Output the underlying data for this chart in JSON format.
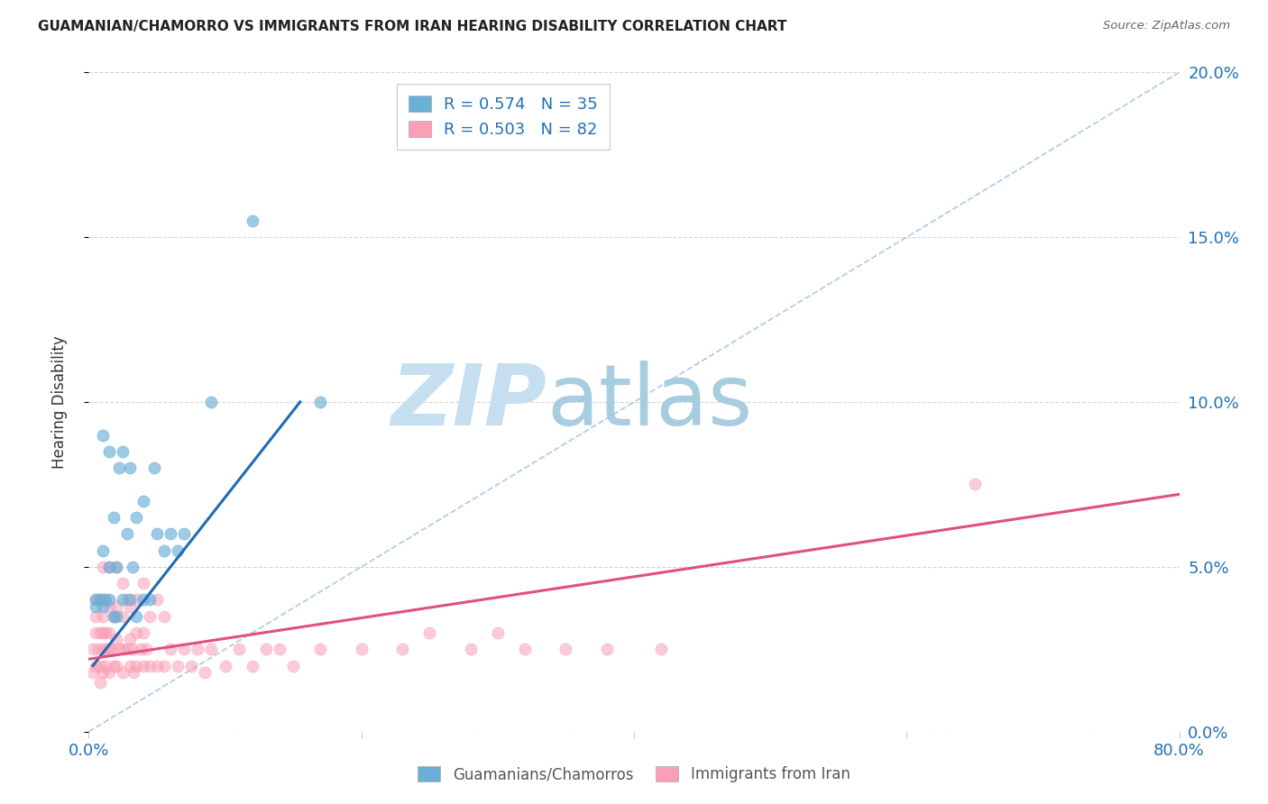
{
  "title": "GUAMANIAN/CHAMORRO VS IMMIGRANTS FROM IRAN HEARING DISABILITY CORRELATION CHART",
  "source": "Source: ZipAtlas.com",
  "ylabel": "Hearing Disability",
  "right_ytick_labels": [
    "0.0%",
    "5.0%",
    "10.0%",
    "15.0%",
    "20.0%"
  ],
  "right_ytick_values": [
    0.0,
    0.05,
    0.1,
    0.15,
    0.2
  ],
  "xtick_labels": [
    "0.0%",
    "",
    "",
    "",
    "80.0%"
  ],
  "xtick_values": [
    0.0,
    0.2,
    0.4,
    0.6,
    0.8
  ],
  "xlim": [
    0.0,
    0.8
  ],
  "ylim": [
    0.0,
    0.2
  ],
  "legend_entry1": "R = 0.574   N = 35",
  "legend_entry2": "R = 0.503   N = 82",
  "color_blue": "#6baed6",
  "color_pink": "#fa9fb5",
  "color_blue_line": "#1f6bb5",
  "color_pink_line": "#e05080",
  "color_legend_text": "#2171b5",
  "watermark_zip_color": "#c5dff0",
  "watermark_atlas_color": "#a8cce0",
  "background_color": "#ffffff",
  "grid_color": "#d0d0d0",
  "dash_color": "#a8c8e8",
  "blue_dots_x": [
    0.005,
    0.008,
    0.01,
    0.01,
    0.01,
    0.012,
    0.015,
    0.015,
    0.015,
    0.018,
    0.018,
    0.02,
    0.02,
    0.022,
    0.025,
    0.025,
    0.028,
    0.03,
    0.03,
    0.032,
    0.035,
    0.035,
    0.04,
    0.04,
    0.045,
    0.048,
    0.05,
    0.055,
    0.06,
    0.065,
    0.07,
    0.09,
    0.12,
    0.17,
    0.005
  ],
  "blue_dots_y": [
    0.04,
    0.04,
    0.038,
    0.055,
    0.09,
    0.04,
    0.04,
    0.05,
    0.085,
    0.035,
    0.065,
    0.035,
    0.05,
    0.08,
    0.04,
    0.085,
    0.06,
    0.04,
    0.08,
    0.05,
    0.035,
    0.065,
    0.04,
    0.07,
    0.04,
    0.08,
    0.06,
    0.055,
    0.06,
    0.055,
    0.06,
    0.1,
    0.155,
    0.1,
    0.038
  ],
  "pink_dots_x": [
    0.003,
    0.005,
    0.005,
    0.005,
    0.005,
    0.007,
    0.008,
    0.008,
    0.008,
    0.01,
    0.01,
    0.01,
    0.01,
    0.01,
    0.01,
    0.012,
    0.012,
    0.013,
    0.015,
    0.015,
    0.015,
    0.015,
    0.015,
    0.016,
    0.018,
    0.018,
    0.02,
    0.02,
    0.02,
    0.02,
    0.022,
    0.025,
    0.025,
    0.025,
    0.025,
    0.028,
    0.028,
    0.03,
    0.03,
    0.03,
    0.032,
    0.033,
    0.035,
    0.035,
    0.035,
    0.038,
    0.04,
    0.04,
    0.04,
    0.042,
    0.045,
    0.045,
    0.05,
    0.05,
    0.055,
    0.055,
    0.06,
    0.065,
    0.07,
    0.075,
    0.08,
    0.085,
    0.09,
    0.1,
    0.11,
    0.12,
    0.13,
    0.14,
    0.15,
    0.17,
    0.2,
    0.23,
    0.25,
    0.28,
    0.3,
    0.32,
    0.35,
    0.38,
    0.42,
    0.65,
    0.003,
    0.008
  ],
  "pink_dots_y": [
    0.025,
    0.02,
    0.03,
    0.035,
    0.04,
    0.025,
    0.02,
    0.03,
    0.04,
    0.018,
    0.025,
    0.03,
    0.035,
    0.04,
    0.05,
    0.02,
    0.03,
    0.025,
    0.018,
    0.025,
    0.03,
    0.038,
    0.05,
    0.025,
    0.02,
    0.035,
    0.02,
    0.028,
    0.038,
    0.05,
    0.025,
    0.018,
    0.025,
    0.035,
    0.045,
    0.025,
    0.04,
    0.02,
    0.028,
    0.038,
    0.025,
    0.018,
    0.02,
    0.03,
    0.04,
    0.025,
    0.02,
    0.03,
    0.045,
    0.025,
    0.02,
    0.035,
    0.02,
    0.04,
    0.02,
    0.035,
    0.025,
    0.02,
    0.025,
    0.02,
    0.025,
    0.018,
    0.025,
    0.02,
    0.025,
    0.02,
    0.025,
    0.025,
    0.02,
    0.025,
    0.025,
    0.025,
    0.03,
    0.025,
    0.03,
    0.025,
    0.025,
    0.025,
    0.025,
    0.075,
    0.018,
    0.015
  ],
  "blue_line_x": [
    0.003,
    0.155
  ],
  "blue_line_y": [
    0.02,
    0.1
  ],
  "pink_line_x": [
    0.0,
    0.8
  ],
  "pink_line_y": [
    0.022,
    0.072
  ]
}
